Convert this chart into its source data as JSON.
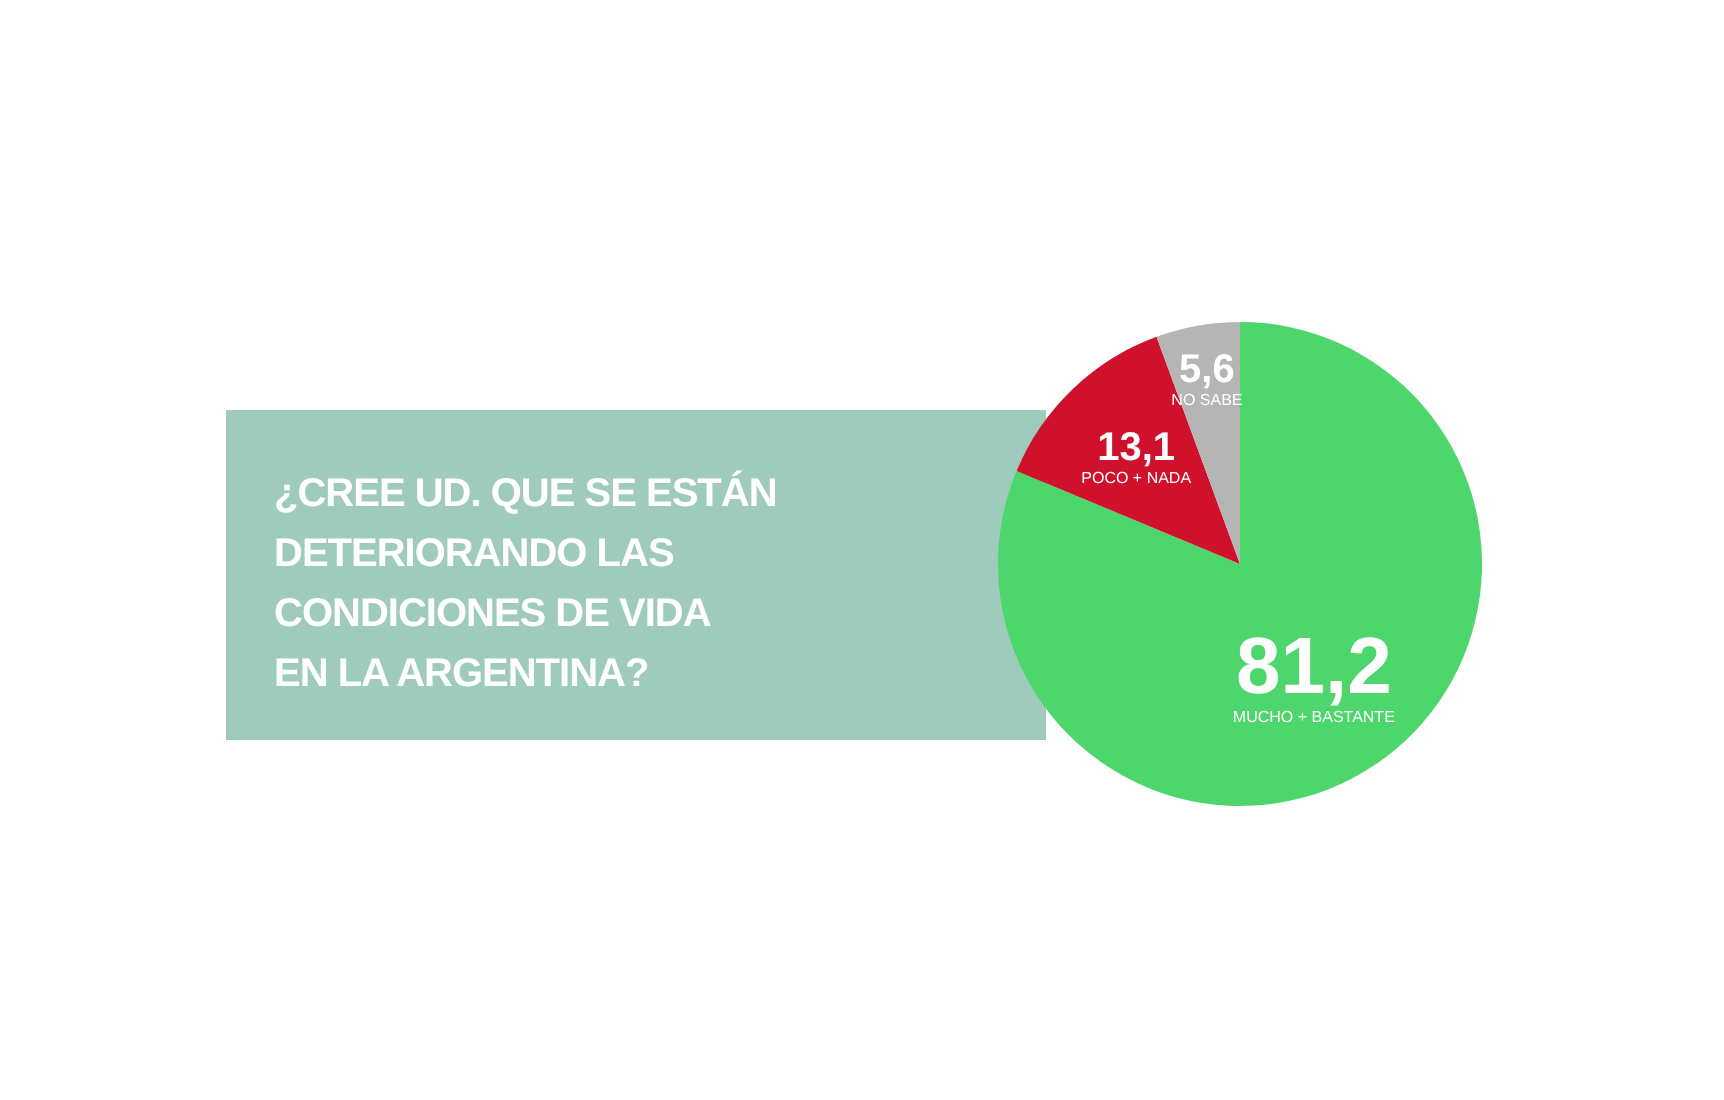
{
  "chart_data": {
    "type": "pie",
    "title": "¿CREE UD. QUE SE ESTÁN\nDETERIORANDO LAS\nCONDICIONES DE VIDA\nEN LA ARGENTINA?",
    "categories": [
      "MUCHO + BASTANTE",
      "POCO + NADA",
      "NO SABE"
    ],
    "values": [
      81.2,
      13.1,
      5.6
    ],
    "colors": [
      "#4cd66b",
      "#d0112b",
      "#b5b5b5"
    ],
    "value_labels": [
      "81,2",
      "13,1",
      "5,6"
    ],
    "legend": false
  }
}
